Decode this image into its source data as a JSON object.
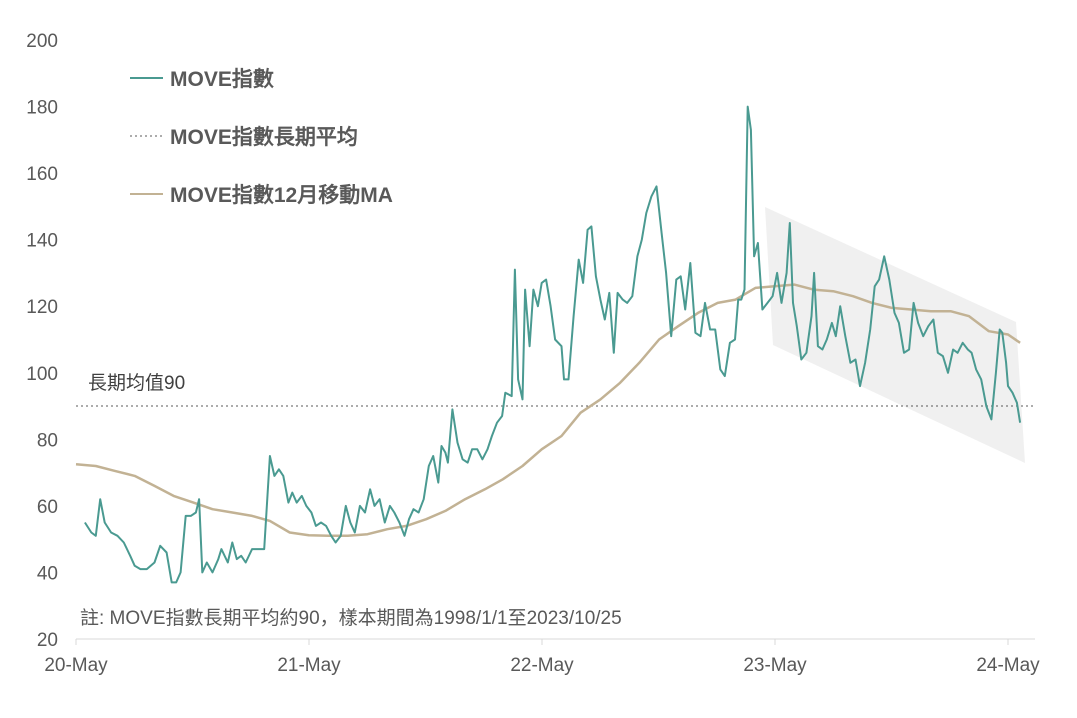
{
  "chart_data": {
    "type": "line",
    "ylim": [
      20,
      200
    ],
    "y_ticks": [
      "20",
      "40",
      "60",
      "80",
      "100",
      "120",
      "140",
      "160",
      "180",
      "200"
    ],
    "x_tick_labels": [
      "20-May",
      "21-May",
      "22-May",
      "23-May",
      "24-May"
    ],
    "x_range": [
      "2020-05",
      "2024-05"
    ],
    "grid": false,
    "legend_position": "top-left",
    "legend": [
      {
        "label": "MOVE指數",
        "style": "solid",
        "color": "#4a9a91"
      },
      {
        "label": "MOVE指數長期平均",
        "style": "dotted",
        "color": "#595959"
      },
      {
        "label": "MOVE指數12月移動MA",
        "style": "solid",
        "color": "#c2b294"
      }
    ],
    "annotation": "長期均值90",
    "note": "註: MOVE指數長期平均約90，樣本期間為1998/1/1至2023/10/25",
    "highlight": "shaded downward channel 2023-05 to 2024-05",
    "long_term_average": 90,
    "series": [
      {
        "name": "MOVE指數",
        "color": "#4a9a91",
        "points": [
          [
            "2020-05-15",
            55
          ],
          [
            "2020-05-25",
            52
          ],
          [
            "2020-06-01",
            51
          ],
          [
            "2020-06-08",
            62
          ],
          [
            "2020-06-15",
            55
          ],
          [
            "2020-06-25",
            52
          ],
          [
            "2020-07-05",
            51
          ],
          [
            "2020-07-15",
            49
          ],
          [
            "2020-07-25",
            45
          ],
          [
            "2020-08-01",
            42
          ],
          [
            "2020-08-10",
            41
          ],
          [
            "2020-08-20",
            41
          ],
          [
            "2020-09-01",
            43
          ],
          [
            "2020-09-10",
            48
          ],
          [
            "2020-09-20",
            46
          ],
          [
            "2020-09-28",
            37
          ],
          [
            "2020-10-05",
            37
          ],
          [
            "2020-10-12",
            40
          ],
          [
            "2020-10-20",
            57
          ],
          [
            "2020-10-28",
            57
          ],
          [
            "2020-11-05",
            58
          ],
          [
            "2020-11-10",
            62
          ],
          [
            "2020-11-15",
            40
          ],
          [
            "2020-11-22",
            43
          ],
          [
            "2020-12-01",
            40
          ],
          [
            "2020-12-10",
            44
          ],
          [
            "2020-12-15",
            47
          ],
          [
            "2020-12-25",
            43
          ],
          [
            "2021-01-01",
            49
          ],
          [
            "2021-01-08",
            44
          ],
          [
            "2021-01-15",
            45
          ],
          [
            "2021-01-22",
            43
          ],
          [
            "2021-02-01",
            47
          ],
          [
            "2021-02-10",
            47
          ],
          [
            "2021-02-20",
            47
          ],
          [
            "2021-03-01",
            75
          ],
          [
            "2021-03-08",
            69
          ],
          [
            "2021-03-15",
            71
          ],
          [
            "2021-03-22",
            69
          ],
          [
            "2021-03-30",
            61
          ],
          [
            "2021-04-05",
            64
          ],
          [
            "2021-04-12",
            61
          ],
          [
            "2021-04-20",
            63
          ],
          [
            "2021-04-27",
            60
          ],
          [
            "2021-05-05",
            58
          ],
          [
            "2021-05-12",
            54
          ],
          [
            "2021-05-20",
            55
          ],
          [
            "2021-05-28",
            54
          ],
          [
            "2021-06-05",
            51
          ],
          [
            "2021-06-12",
            49
          ],
          [
            "2021-06-20",
            51
          ],
          [
            "2021-06-28",
            60
          ],
          [
            "2021-07-05",
            55
          ],
          [
            "2021-07-12",
            52
          ],
          [
            "2021-07-20",
            60
          ],
          [
            "2021-07-28",
            58
          ],
          [
            "2021-08-05",
            65
          ],
          [
            "2021-08-12",
            60
          ],
          [
            "2021-08-20",
            62
          ],
          [
            "2021-08-28",
            55
          ],
          [
            "2021-09-05",
            60
          ],
          [
            "2021-09-12",
            58
          ],
          [
            "2021-09-20",
            55
          ],
          [
            "2021-09-28",
            51
          ],
          [
            "2021-10-05",
            56
          ],
          [
            "2021-10-12",
            59
          ],
          [
            "2021-10-20",
            58
          ],
          [
            "2021-10-28",
            62
          ],
          [
            "2021-11-05",
            72
          ],
          [
            "2021-11-12",
            75
          ],
          [
            "2021-11-20",
            67
          ],
          [
            "2021-11-25",
            78
          ],
          [
            "2021-12-01",
            76
          ],
          [
            "2021-12-05",
            73
          ],
          [
            "2021-12-12",
            89
          ],
          [
            "2021-12-20",
            79
          ],
          [
            "2021-12-28",
            74
          ],
          [
            "2022-01-05",
            73
          ],
          [
            "2022-01-12",
            77
          ],
          [
            "2022-01-20",
            77
          ],
          [
            "2022-01-28",
            74
          ],
          [
            "2022-02-05",
            77
          ],
          [
            "2022-02-12",
            81
          ],
          [
            "2022-02-20",
            85
          ],
          [
            "2022-02-28",
            87
          ],
          [
            "2022-03-05",
            94
          ],
          [
            "2022-03-15",
            93
          ],
          [
            "2022-03-20",
            131
          ],
          [
            "2022-03-25",
            98
          ],
          [
            "2022-04-01",
            92
          ],
          [
            "2022-04-05",
            125
          ],
          [
            "2022-04-12",
            108
          ],
          [
            "2022-04-18",
            125
          ],
          [
            "2022-04-25",
            120
          ],
          [
            "2022-05-01",
            127
          ],
          [
            "2022-05-08",
            128
          ],
          [
            "2022-05-15",
            120
          ],
          [
            "2022-05-22",
            110
          ],
          [
            "2022-06-01",
            108
          ],
          [
            "2022-06-05",
            98
          ],
          [
            "2022-06-12",
            98
          ],
          [
            "2022-06-20",
            117
          ],
          [
            "2022-06-28",
            134
          ],
          [
            "2022-07-05",
            127
          ],
          [
            "2022-07-12",
            143
          ],
          [
            "2022-07-18",
            144
          ],
          [
            "2022-07-25",
            129
          ],
          [
            "2022-08-01",
            122
          ],
          [
            "2022-08-08",
            116
          ],
          [
            "2022-08-15",
            124
          ],
          [
            "2022-08-22",
            106
          ],
          [
            "2022-08-28",
            124
          ],
          [
            "2022-09-05",
            122
          ],
          [
            "2022-09-12",
            121
          ],
          [
            "2022-09-20",
            123
          ],
          [
            "2022-09-28",
            135
          ],
          [
            "2022-10-05",
            140
          ],
          [
            "2022-10-12",
            148
          ],
          [
            "2022-10-20",
            153
          ],
          [
            "2022-10-28",
            156
          ],
          [
            "2022-11-05",
            142
          ],
          [
            "2022-11-12",
            130
          ],
          [
            "2022-11-20",
            111
          ],
          [
            "2022-11-28",
            128
          ],
          [
            "2022-12-05",
            129
          ],
          [
            "2022-12-12",
            119
          ],
          [
            "2022-12-20",
            133
          ],
          [
            "2022-12-28",
            112
          ],
          [
            "2023-01-05",
            111
          ],
          [
            "2023-01-12",
            121
          ],
          [
            "2023-01-20",
            113
          ],
          [
            "2023-01-28",
            113
          ],
          [
            "2023-02-05",
            101
          ],
          [
            "2023-02-12",
            99
          ],
          [
            "2023-02-20",
            109
          ],
          [
            "2023-02-28",
            110
          ],
          [
            "2023-03-05",
            122
          ],
          [
            "2023-03-10",
            122
          ],
          [
            "2023-03-15",
            125
          ],
          [
            "2023-03-20",
            180
          ],
          [
            "2023-03-25",
            173
          ],
          [
            "2023-03-30",
            135
          ],
          [
            "2023-04-05",
            139
          ],
          [
            "2023-04-12",
            119
          ],
          [
            "2023-04-20",
            121
          ],
          [
            "2023-04-28",
            123
          ],
          [
            "2023-05-05",
            130
          ],
          [
            "2023-05-12",
            121
          ],
          [
            "2023-05-20",
            130
          ],
          [
            "2023-05-25",
            145
          ],
          [
            "2023-05-30",
            121
          ],
          [
            "2023-06-05",
            114
          ],
          [
            "2023-06-12",
            104
          ],
          [
            "2023-06-20",
            106
          ],
          [
            "2023-06-28",
            117
          ],
          [
            "2023-07-02",
            130
          ],
          [
            "2023-07-08",
            108
          ],
          [
            "2023-07-15",
            107
          ],
          [
            "2023-07-22",
            110
          ],
          [
            "2023-07-30",
            115
          ],
          [
            "2023-08-05",
            111
          ],
          [
            "2023-08-12",
            120
          ],
          [
            "2023-08-20",
            111
          ],
          [
            "2023-08-28",
            103
          ],
          [
            "2023-09-05",
            104
          ],
          [
            "2023-09-12",
            96
          ],
          [
            "2023-09-20",
            103
          ],
          [
            "2023-09-28",
            113
          ],
          [
            "2023-10-05",
            126
          ],
          [
            "2023-10-12",
            128
          ],
          [
            "2023-10-20",
            135
          ],
          [
            "2023-10-28",
            128
          ],
          [
            "2023-11-05",
            118
          ],
          [
            "2023-11-12",
            115
          ],
          [
            "2023-11-20",
            106
          ],
          [
            "2023-11-28",
            107
          ],
          [
            "2023-12-05",
            121
          ],
          [
            "2023-12-12",
            115
          ],
          [
            "2023-12-20",
            111
          ],
          [
            "2023-12-28",
            114
          ],
          [
            "2024-01-05",
            116
          ],
          [
            "2024-01-12",
            106
          ],
          [
            "2024-01-20",
            105
          ],
          [
            "2024-01-28",
            100
          ],
          [
            "2024-02-05",
            107
          ],
          [
            "2024-02-12",
            106
          ],
          [
            "2024-02-20",
            109
          ],
          [
            "2024-02-28",
            107
          ],
          [
            "2024-03-05",
            106
          ],
          [
            "2024-03-12",
            101
          ],
          [
            "2024-03-20",
            98
          ],
          [
            "2024-03-28",
            90
          ],
          [
            "2024-04-05",
            86
          ],
          [
            "2024-04-12",
            100
          ],
          [
            "2024-04-18",
            113
          ],
          [
            "2024-04-22",
            112
          ],
          [
            "2024-04-28",
            103
          ],
          [
            "2024-05-01",
            96
          ],
          [
            "2024-05-08",
            94
          ],
          [
            "2024-05-15",
            91
          ],
          [
            "2024-05-20",
            85
          ]
        ]
      },
      {
        "name": "MOVE指數12月移動MA",
        "color": "#c2b294",
        "points": [
          [
            "2020-05-01",
            72.5
          ],
          [
            "2020-06-01",
            72
          ],
          [
            "2020-07-01",
            70.5
          ],
          [
            "2020-08-01",
            69
          ],
          [
            "2020-09-01",
            66
          ],
          [
            "2020-10-01",
            63
          ],
          [
            "2020-11-01",
            61
          ],
          [
            "2020-12-01",
            59
          ],
          [
            "2021-01-01",
            58
          ],
          [
            "2021-02-01",
            57
          ],
          [
            "2021-03-01",
            55.5
          ],
          [
            "2021-04-01",
            52
          ],
          [
            "2021-05-01",
            51.2
          ],
          [
            "2021-06-01",
            51
          ],
          [
            "2021-07-01",
            51
          ],
          [
            "2021-08-01",
            51.5
          ],
          [
            "2021-09-01",
            53
          ],
          [
            "2021-10-01",
            54
          ],
          [
            "2021-11-01",
            56
          ],
          [
            "2021-12-01",
            58.5
          ],
          [
            "2022-01-01",
            62
          ],
          [
            "2022-02-01",
            65
          ],
          [
            "2022-03-01",
            68
          ],
          [
            "2022-04-01",
            72
          ],
          [
            "2022-05-01",
            77
          ],
          [
            "2022-06-01",
            81
          ],
          [
            "2022-07-01",
            88
          ],
          [
            "2022-08-01",
            92
          ],
          [
            "2022-09-01",
            97
          ],
          [
            "2022-10-01",
            103
          ],
          [
            "2022-11-01",
            110
          ],
          [
            "2022-12-01",
            114
          ],
          [
            "2023-01-01",
            118
          ],
          [
            "2023-02-01",
            121
          ],
          [
            "2023-03-01",
            122
          ],
          [
            "2023-04-01",
            125.5
          ],
          [
            "2023-05-01",
            126
          ],
          [
            "2023-06-01",
            126.5
          ],
          [
            "2023-07-01",
            125
          ],
          [
            "2023-08-01",
            124.5
          ],
          [
            "2023-09-01",
            123
          ],
          [
            "2023-10-01",
            121
          ],
          [
            "2023-11-01",
            119.5
          ],
          [
            "2023-12-01",
            119
          ],
          [
            "2024-01-01",
            118.5
          ],
          [
            "2024-02-01",
            118.5
          ],
          [
            "2024-03-01",
            117
          ],
          [
            "2024-04-01",
            112.5
          ],
          [
            "2024-05-01",
            111.5
          ],
          [
            "2024-05-20",
            109
          ]
        ]
      }
    ]
  }
}
